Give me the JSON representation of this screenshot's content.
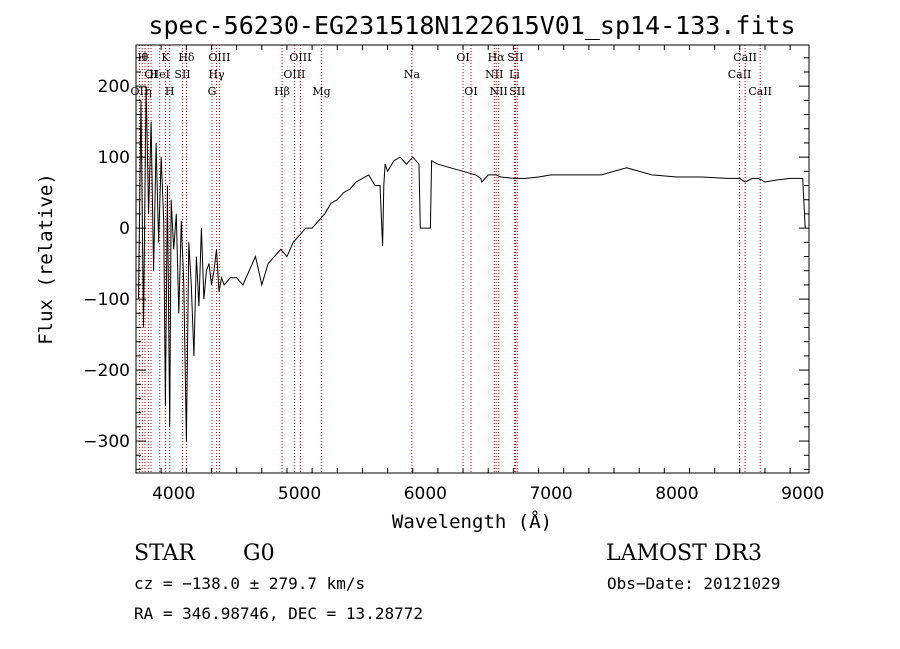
{
  "chart_data": {
    "type": "line",
    "title": "spec-56230-EG231518N122615V01_sp14-133.fits",
    "xlabel": "Wavelength (Å)",
    "ylabel": "Flux (relative)",
    "xlim": [
      3700,
      9050
    ],
    "ylim": [
      -345,
      258
    ],
    "x_ticks": [
      4000,
      5000,
      6000,
      7000,
      8000,
      9000
    ],
    "y_ticks": [
      -300,
      -200,
      -100,
      0,
      100,
      200
    ],
    "grid": false,
    "series": [
      {
        "x": [
          3720,
          3740,
          3760,
          3780,
          3800,
          3820,
          3840,
          3860,
          3880,
          3900,
          3920,
          3934,
          3950,
          3968,
          3980,
          4000,
          4020,
          4040,
          4060,
          4080,
          4101,
          4120,
          4140,
          4160,
          4180,
          4200,
          4220,
          4240,
          4260,
          4280,
          4300,
          4320,
          4340,
          4360,
          4380,
          4400,
          4450,
          4500,
          4550,
          4600,
          4650,
          4700,
          4750,
          4800,
          4850,
          4900,
          4950,
          5000,
          5050,
          5100,
          5150,
          5200,
          5250,
          5300,
          5350,
          5400,
          5450,
          5500,
          5550,
          5600,
          5640,
          5660,
          5670,
          5680,
          5700,
          5750,
          5800,
          5850,
          5900,
          5950,
          5960,
          6040,
          6050,
          6100,
          6200,
          6300,
          6400,
          6440,
          6450,
          6500,
          6563,
          6600,
          6700,
          6800,
          6900,
          7000,
          7200,
          7400,
          7600,
          7800,
          8000,
          8200,
          8400,
          8500,
          8542,
          8600,
          8650,
          8700,
          8800,
          8900,
          9000,
          9020
        ],
        "y": [
          -100,
          180,
          -140,
          200,
          20,
          150,
          -60,
          120,
          -20,
          100,
          10,
          -250,
          60,
          -280,
          40,
          -30,
          20,
          -120,
          10,
          -80,
          -300,
          -20,
          -80,
          -180,
          -40,
          -110,
          0,
          -100,
          -60,
          -50,
          -80,
          -60,
          -30,
          -90,
          -70,
          -80,
          -70,
          -70,
          -80,
          -60,
          -40,
          -80,
          -50,
          -40,
          -30,
          -40,
          -20,
          -10,
          0,
          0,
          10,
          20,
          35,
          40,
          50,
          55,
          65,
          70,
          75,
          60,
          60,
          -25,
          60,
          90,
          80,
          95,
          100,
          90,
          100,
          90,
          0,
          0,
          95,
          90,
          85,
          80,
          75,
          70,
          65,
          75,
          75,
          72,
          70,
          70,
          72,
          75,
          75,
          75,
          85,
          75,
          72,
          72,
          70,
          70,
          65,
          70,
          70,
          65,
          68,
          70,
          70,
          0
        ]
      }
    ],
    "line_markers": [
      {
        "x": 3727,
        "label": "OII",
        "row": 3
      },
      {
        "x": 3750,
        "label": "H",
        "row": 1
      },
      {
        "x": 3771,
        "label": "θ",
        "row": 1
      },
      {
        "x": 3798,
        "label": "η",
        "row": 3
      },
      {
        "x": 3820,
        "label": "OI",
        "row": 2
      },
      {
        "x": 3889,
        "label": "HeI",
        "row": 2
      },
      {
        "x": 3934,
        "label": "K",
        "row": 1
      },
      {
        "x": 3968,
        "label": "H",
        "row": 3
      },
      {
        "x": 4070,
        "label": "SII",
        "row": 2
      },
      {
        "x": 4101,
        "label": "Hδ",
        "row": 1
      },
      {
        "x": 4304,
        "label": "G",
        "row": 3
      },
      {
        "x": 4340,
        "label": "Hγ",
        "row": 2
      },
      {
        "x": 4363,
        "label": "OIII",
        "row": 1
      },
      {
        "x": 4861,
        "label": "Hβ",
        "row": 3
      },
      {
        "x": 4959,
        "label": "OIII",
        "row": 2
      },
      {
        "x": 5007,
        "label": "OIII",
        "row": 1
      },
      {
        "x": 5175,
        "label": "Mg",
        "row": 3
      },
      {
        "x": 5893,
        "label": "Na",
        "row": 2
      },
      {
        "x": 6300,
        "label": "OI",
        "row": 1
      },
      {
        "x": 6363,
        "label": "OI",
        "row": 3
      },
      {
        "x": 6548,
        "label": "NII",
        "row": 2
      },
      {
        "x": 6563,
        "label": "Hα",
        "row": 1
      },
      {
        "x": 6583,
        "label": "NII",
        "row": 3
      },
      {
        "x": 6708,
        "label": "Li",
        "row": 2
      },
      {
        "x": 6716,
        "label": "SII",
        "row": 1
      },
      {
        "x": 6731,
        "label": "SII",
        "row": 3
      },
      {
        "x": 8498,
        "label": "CaII",
        "row": 2
      },
      {
        "x": 8542,
        "label": "CaII",
        "row": 1
      },
      {
        "x": 8662,
        "label": "CaII",
        "row": 3
      }
    ]
  },
  "info": {
    "class": "STAR",
    "subclass": "G0",
    "survey": "LAMOST DR3",
    "cz": "cz = −138.0 ± 279.7 km/s",
    "obs_date": "Obs−Date: 20121029",
    "coords": "RA = 346.98746, DEC =  13.28772"
  }
}
